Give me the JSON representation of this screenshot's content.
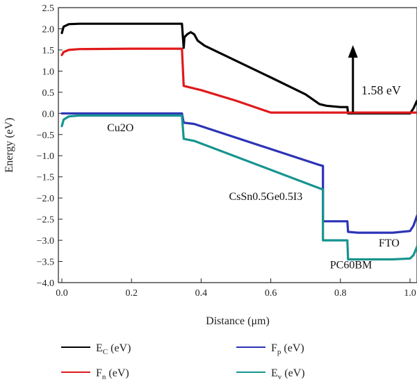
{
  "chart_data": {
    "type": "line",
    "xlabel": "Distance (μm)",
    "ylabel": "Energy (eV)",
    "xlim": [
      -0.01,
      1.02
    ],
    "ylim": [
      -4.0,
      2.5
    ],
    "x_ticks": [
      0.0,
      0.2,
      0.4,
      0.6,
      0.8,
      1.0
    ],
    "x_tick_labels": [
      "0.0",
      "0.2",
      "0.4",
      "0.6",
      "0.8",
      "1.0"
    ],
    "y_ticks": [
      2.5,
      2.0,
      1.5,
      1.0,
      0.5,
      0.0,
      -0.5,
      -1.0,
      -1.5,
      -2.0,
      -2.5,
      -3.0,
      -3.5,
      -4.0
    ],
    "y_tick_labels": [
      "2.5",
      "2.0",
      "1.5",
      "1.0",
      "0.5",
      "0.0",
      "−0.5",
      "−1.0",
      "−1.5",
      "−2.0",
      "−2.5",
      "−3.0",
      "−3.5",
      "−4.0"
    ],
    "grid": false,
    "legend_position": "bottom",
    "series": [
      {
        "name": "E_C (eV)",
        "color": "#000000",
        "points": [
          [
            0.0,
            1.9
          ],
          [
            0.005,
            2.05
          ],
          [
            0.02,
            2.11
          ],
          [
            0.05,
            2.12
          ],
          [
            0.2,
            2.12
          ],
          [
            0.345,
            2.12
          ],
          [
            0.35,
            1.55
          ],
          [
            0.352,
            1.8
          ],
          [
            0.36,
            1.87
          ],
          [
            0.37,
            1.92
          ],
          [
            0.38,
            1.87
          ],
          [
            0.39,
            1.72
          ],
          [
            0.41,
            1.6
          ],
          [
            0.6,
            0.85
          ],
          [
            0.7,
            0.45
          ],
          [
            0.74,
            0.22
          ],
          [
            0.76,
            0.18
          ],
          [
            0.8,
            0.15
          ],
          [
            0.82,
            0.15
          ],
          [
            0.822,
            0.0
          ],
          [
            1.0,
            0.0
          ],
          [
            1.01,
            0.12
          ],
          [
            1.02,
            0.3
          ]
        ]
      },
      {
        "name": "F_n (eV)",
        "color": "#e0191b",
        "points": [
          [
            0.0,
            1.38
          ],
          [
            0.005,
            1.45
          ],
          [
            0.02,
            1.5
          ],
          [
            0.05,
            1.52
          ],
          [
            0.2,
            1.53
          ],
          [
            0.345,
            1.53
          ],
          [
            0.35,
            0.65
          ],
          [
            0.4,
            0.55
          ],
          [
            0.5,
            0.3
          ],
          [
            0.6,
            0.02
          ],
          [
            0.7,
            0.02
          ],
          [
            0.85,
            0.02
          ],
          [
            1.02,
            0.02
          ]
        ]
      },
      {
        "name": "F_p (eV)",
        "color": "#2b33b5",
        "points": [
          [
            0.0,
            0.0
          ],
          [
            0.345,
            0.0
          ],
          [
            0.35,
            -0.22
          ],
          [
            0.38,
            -0.25
          ],
          [
            0.74,
            -1.22
          ],
          [
            0.75,
            -1.24
          ],
          [
            0.75,
            -2.55
          ],
          [
            0.82,
            -2.55
          ],
          [
            0.822,
            -2.8
          ],
          [
            0.85,
            -2.82
          ],
          [
            0.95,
            -2.82
          ],
          [
            1.0,
            -2.78
          ],
          [
            1.01,
            -2.65
          ],
          [
            1.02,
            -2.42
          ]
        ]
      },
      {
        "name": "E_v (eV)",
        "color": "#17948f",
        "points": [
          [
            0.0,
            -0.3
          ],
          [
            0.005,
            -0.15
          ],
          [
            0.02,
            -0.07
          ],
          [
            0.05,
            -0.05
          ],
          [
            0.2,
            -0.05
          ],
          [
            0.345,
            -0.05
          ],
          [
            0.35,
            -0.6
          ],
          [
            0.38,
            -0.65
          ],
          [
            0.74,
            -1.77
          ],
          [
            0.75,
            -1.8
          ],
          [
            0.75,
            -3.0
          ],
          [
            0.82,
            -3.0
          ],
          [
            0.822,
            -3.45
          ],
          [
            0.85,
            -3.45
          ],
          [
            0.95,
            -3.45
          ],
          [
            1.0,
            -3.43
          ],
          [
            1.01,
            -3.35
          ],
          [
            1.02,
            -3.15
          ]
        ]
      }
    ],
    "annotations": [
      {
        "text": "1.58 eV",
        "x": 0.86,
        "y": 0.45
      },
      {
        "text": "Cu2O",
        "x": 0.13,
        "y": -0.42
      },
      {
        "text": "CsSn0.5Ge0.5I3",
        "x": 0.48,
        "y": -2.05
      },
      {
        "text": "FTO",
        "x": 0.91,
        "y": -3.15
      },
      {
        "text": "PC60BM",
        "x": 0.77,
        "y": -3.66
      }
    ],
    "arrow": {
      "x": 0.836,
      "y_from": 0.03,
      "y_to": 1.58
    }
  },
  "legend": [
    {
      "base": "E",
      "sub": "C",
      "suffix": " (eV)",
      "color": "#000000"
    },
    {
      "base": "F",
      "sub": "n",
      "suffix": " (eV)",
      "color": "#e0191b"
    },
    {
      "base": "F",
      "sub": "p",
      "suffix": " (eV)",
      "color": "#2b33b5"
    },
    {
      "base": "E",
      "sub": "v",
      "suffix": " (eV)",
      "color": "#17948f"
    }
  ]
}
